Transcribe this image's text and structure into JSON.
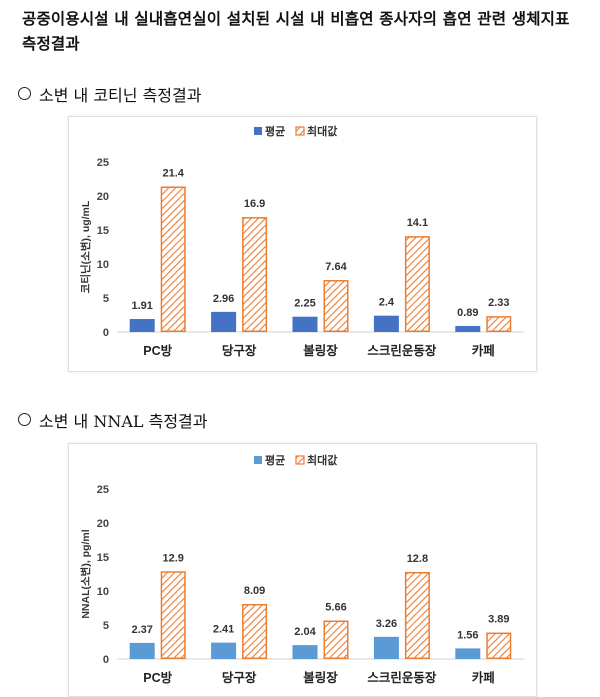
{
  "title": "공중이용시설 내 실내흡연실이 설치된 시설 내 비흡연 종사자의 흡연 관련 생체지표 측정결과",
  "sections": [
    {
      "heading": "소변 내 코티닌 측정결과"
    },
    {
      "heading": "소변 내 NNAL 측정결과"
    }
  ],
  "colors": {
    "avg1": "#4472c4",
    "avg2": "#5b9bd5",
    "max": "#ed7d31"
  },
  "chart_data": [
    {
      "type": "bar",
      "categories": [
        "PC방",
        "당구장",
        "볼링장",
        "스크린운동장",
        "카페"
      ],
      "series": [
        {
          "name": "평균",
          "values": [
            1.91,
            2.96,
            2.25,
            2.4,
            0.89
          ]
        },
        {
          "name": "최대값",
          "values": [
            21.4,
            16.9,
            7.64,
            14.1,
            2.33
          ]
        }
      ],
      "value_labels": [
        [
          "1.91",
          "2.96",
          "2.25",
          "2.4",
          "0.89"
        ],
        [
          "21.4",
          "16.9",
          "7.64",
          "14.1",
          "2.33"
        ]
      ],
      "ylabel": "코티닌(소변), ug/mL",
      "yticks": [
        "0",
        "5",
        "10",
        "15",
        "20",
        "25"
      ],
      "ylim": [
        0,
        25
      ],
      "legend_position": "top-center",
      "grid": false
    },
    {
      "type": "bar",
      "categories": [
        "PC방",
        "당구장",
        "볼링장",
        "스크린운동장",
        "카페"
      ],
      "series": [
        {
          "name": "평균",
          "values": [
            2.37,
            2.41,
            2.04,
            3.26,
            1.56
          ]
        },
        {
          "name": "최대값",
          "values": [
            12.9,
            8.09,
            5.66,
            12.8,
            3.89
          ]
        }
      ],
      "value_labels": [
        [
          "2.37",
          "2.41",
          "2.04",
          "3.26",
          "1.56"
        ],
        [
          "12.9",
          "8.09",
          "5.66",
          "12.8",
          "3.89"
        ]
      ],
      "ylabel": "NNAL(소변), pg/ml",
      "yticks": [
        "0",
        "5",
        "10",
        "15",
        "20",
        "25"
      ],
      "ylim": [
        0,
        25
      ],
      "legend_position": "top-center",
      "grid": false
    }
  ]
}
